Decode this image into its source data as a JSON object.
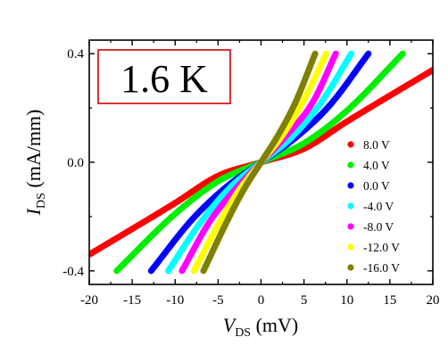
{
  "chart_data": {
    "type": "line",
    "temperature_label": "1.6 K",
    "xlabel": {
      "main": "V",
      "sub": "DS",
      "unit": " (mV)"
    },
    "ylabel": {
      "main": "I",
      "sub": "DS",
      "unit": " (mA/mm)"
    },
    "xlim": [
      -20,
      20
    ],
    "ylim": [
      -0.45,
      0.45
    ],
    "x_ticks": [
      -20,
      -15,
      -10,
      -5,
      0,
      5,
      10,
      15,
      20
    ],
    "x_tick_labels": [
      "-20",
      "-15",
      "-10",
      "-5",
      "0",
      "5",
      "10",
      "15",
      "20"
    ],
    "y_ticks": [
      -0.4,
      0.0,
      0.4
    ],
    "y_tick_labels": [
      "-0.4",
      "0.0",
      "0.4"
    ],
    "grid": false,
    "legend_position": "right",
    "series": [
      {
        "name": "8.0 V",
        "color": "#ff0000",
        "x": [
          -20,
          -10,
          -5,
          0,
          5,
          10,
          20
        ],
        "y": [
          -0.34,
          -0.15,
          -0.05,
          0.0,
          0.05,
          0.15,
          0.34
        ]
      },
      {
        "name": "4.0 V",
        "color": "#00ee00",
        "x": [
          -16.8,
          -10,
          -5,
          0,
          5,
          10,
          16.5
        ],
        "y": [
          -0.4,
          -0.19,
          -0.07,
          0.0,
          0.07,
          0.19,
          0.4
        ]
      },
      {
        "name": "0.0 V",
        "color": "#0000ff",
        "x": [
          -12.8,
          -8,
          -4,
          0,
          4,
          8,
          12.5
        ],
        "y": [
          -0.4,
          -0.21,
          -0.09,
          0.0,
          0.09,
          0.21,
          0.4
        ]
      },
      {
        "name": "-4.0 V",
        "color": "#00ffff",
        "x": [
          -10.8,
          -7,
          -3.5,
          0,
          3.5,
          7,
          10.5
        ],
        "y": [
          -0.4,
          -0.22,
          -0.09,
          0.0,
          0.09,
          0.22,
          0.4
        ]
      },
      {
        "name": "-8.0 V",
        "color": "#ff00ff",
        "x": [
          -9.2,
          -6,
          -3,
          0,
          3,
          6,
          8.7
        ],
        "y": [
          -0.4,
          -0.22,
          -0.1,
          0.0,
          0.1,
          0.22,
          0.4
        ]
      },
      {
        "name": "-12.0 V",
        "color": "#ffff00",
        "x": [
          -7.8,
          -5,
          -2.5,
          0,
          2.5,
          5,
          7.6
        ],
        "y": [
          -0.4,
          -0.23,
          -0.1,
          0.0,
          0.1,
          0.23,
          0.4
        ]
      },
      {
        "name": "-16.0 V",
        "color": "#808000",
        "x": [
          -6.7,
          -4,
          -2,
          0,
          2,
          4,
          6.3
        ],
        "y": [
          -0.4,
          -0.22,
          -0.1,
          0.0,
          0.1,
          0.22,
          0.4
        ]
      }
    ]
  }
}
